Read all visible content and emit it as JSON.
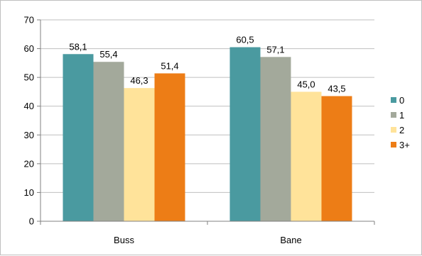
{
  "chart_data": {
    "type": "bar",
    "categories": [
      "Buss",
      "Bane"
    ],
    "series": [
      {
        "name": "0",
        "values": [
          58.1,
          60.5
        ],
        "labels": [
          "58,1",
          "60,5"
        ],
        "color": "#4a9aa0"
      },
      {
        "name": "1",
        "values": [
          55.4,
          57.1
        ],
        "labels": [
          "55,4",
          "57,1"
        ],
        "color": "#a3a99b"
      },
      {
        "name": "2",
        "values": [
          46.3,
          45.0
        ],
        "labels": [
          "46,3",
          "45,0"
        ],
        "color": "#ffe39a"
      },
      {
        "name": "3+",
        "values": [
          51.4,
          43.5
        ],
        "labels": [
          "51,4",
          "43,5"
        ],
        "color": "#ed7d16"
      }
    ],
    "ylim": [
      0,
      70
    ],
    "yticks": [
      "0",
      "10",
      "20",
      "30",
      "40",
      "50",
      "60",
      "70"
    ],
    "grid": true,
    "legend_position": "right"
  }
}
